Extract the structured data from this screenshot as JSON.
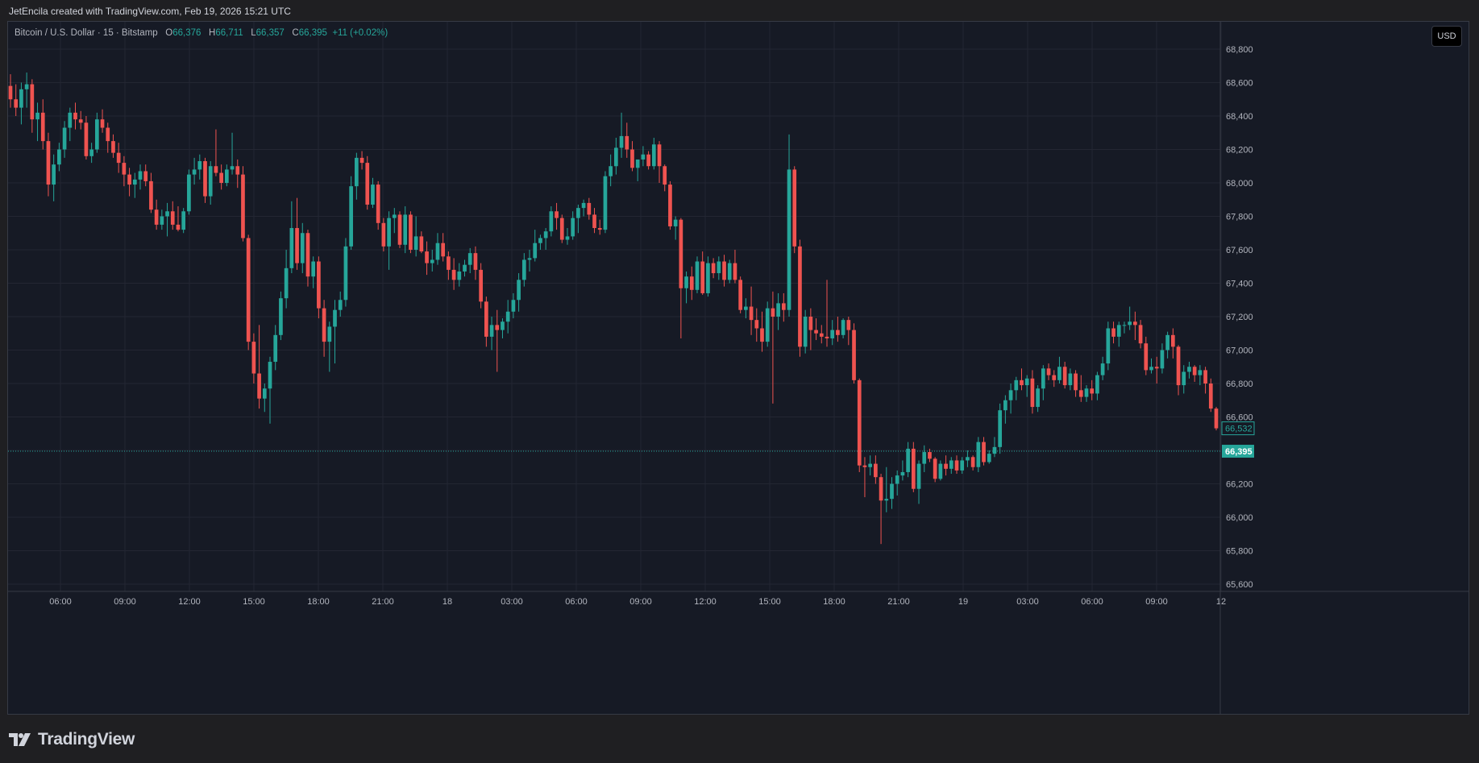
{
  "header": {
    "creator_text": "JetEncila created with TradingView.com, Feb 19, 2026 15:21 UTC"
  },
  "legend": {
    "symbol": "Bitcoin / U.S. Dollar · 15 · Bitstamp",
    "o_label": "O",
    "o_value": "66,376",
    "h_label": "H",
    "h_value": "66,711",
    "l_label": "L",
    "l_value": "66,357",
    "c_label": "C",
    "c_value": "66,395",
    "change": "+11 (+0.02%)"
  },
  "currency_button": "USD",
  "brand": {
    "name": "TradingView",
    "logo_icon": "tradingview-logo-icon"
  },
  "colors": {
    "up": "#26a69a",
    "down": "#ef5350",
    "background": "#161a25",
    "grid": "#232632",
    "axis_text": "#b2b5be"
  },
  "chart_data": {
    "type": "candlestick",
    "title": "Bitcoin / U.S. Dollar · 15 · Bitstamp",
    "timeframe": "15",
    "ylim": [
      65600,
      68800
    ],
    "y_ticks": [
      "68,800",
      "68,600",
      "68,400",
      "68,200",
      "68,000",
      "67,800",
      "67,600",
      "67,400",
      "67,200",
      "67,000",
      "66,800",
      "66,600",
      "66,400",
      "66,200",
      "66,000",
      "65,800",
      "65,600"
    ],
    "x_ticks": [
      "06:00",
      "09:00",
      "12:00",
      "15:00",
      "18:00",
      "21:00",
      "18",
      "03:00",
      "06:00",
      "09:00",
      "12:00",
      "15:00",
      "18:00",
      "21:00",
      "19",
      "03:00",
      "06:00",
      "09:00",
      "12"
    ],
    "price_labels": [
      {
        "value": 66532,
        "text": "66,532",
        "style": "outline"
      },
      {
        "value": 66395,
        "text": "66,395",
        "style": "filled"
      }
    ],
    "last_price_line": 66395,
    "grid": true,
    "candles": [
      [
        68580,
        68650,
        68450,
        68500
      ],
      [
        68500,
        68590,
        68400,
        68450
      ],
      [
        68450,
        68600,
        68350,
        68560
      ],
      [
        68560,
        68660,
        68450,
        68590
      ],
      [
        68590,
        68620,
        68300,
        68380
      ],
      [
        68380,
        68480,
        68250,
        68420
      ],
      [
        68420,
        68500,
        68200,
        68250
      ],
      [
        68250,
        68300,
        67920,
        67990
      ],
      [
        67990,
        68170,
        67890,
        68110
      ],
      [
        68110,
        68240,
        68070,
        68200
      ],
      [
        68200,
        68370,
        68150,
        68330
      ],
      [
        68330,
        68450,
        68250,
        68420
      ],
      [
        68420,
        68480,
        68320,
        68380
      ],
      [
        68380,
        68430,
        68320,
        68360
      ],
      [
        68360,
        68400,
        68140,
        68160
      ],
      [
        68160,
        68240,
        68120,
        68200
      ],
      [
        68200,
        68420,
        68180,
        68380
      ],
      [
        68380,
        68440,
        68300,
        68330
      ],
      [
        68330,
        68360,
        68180,
        68250
      ],
      [
        68250,
        68290,
        68150,
        68180
      ],
      [
        68180,
        68240,
        68060,
        68120
      ],
      [
        68120,
        68160,
        67980,
        68050
      ],
      [
        68050,
        68090,
        67920,
        67990
      ],
      [
        67990,
        68060,
        67910,
        68020
      ],
      [
        68020,
        68110,
        67960,
        68070
      ],
      [
        68070,
        68110,
        67980,
        68010
      ],
      [
        68010,
        68060,
        67820,
        67840
      ],
      [
        67840,
        67900,
        67720,
        67750
      ],
      [
        67750,
        67840,
        67720,
        67800
      ],
      [
        67800,
        67880,
        67680,
        67830
      ],
      [
        67830,
        67890,
        67720,
        67750
      ],
      [
        67750,
        67860,
        67710,
        67720
      ],
      [
        67720,
        67850,
        67700,
        67830
      ],
      [
        67830,
        68080,
        67810,
        68050
      ],
      [
        68050,
        68150,
        67990,
        68080
      ],
      [
        68080,
        68170,
        68020,
        68130
      ],
      [
        68130,
        68150,
        67880,
        67920
      ],
      [
        67920,
        68130,
        67870,
        68100
      ],
      [
        68100,
        68320,
        68040,
        68060
      ],
      [
        68060,
        68110,
        67960,
        68000
      ],
      [
        68000,
        68110,
        67980,
        68080
      ],
      [
        68080,
        68300,
        68050,
        68100
      ],
      [
        68100,
        68140,
        67970,
        68050
      ],
      [
        68050,
        68100,
        67650,
        67670
      ],
      [
        67670,
        67690,
        67000,
        67050
      ],
      [
        67050,
        67100,
        66800,
        66860
      ],
      [
        66860,
        67150,
        66650,
        66710
      ],
      [
        66710,
        66800,
        66630,
        66770
      ],
      [
        66770,
        66960,
        66560,
        66930
      ],
      [
        66930,
        67150,
        66880,
        67090
      ],
      [
        67090,
        67350,
        67060,
        67310
      ],
      [
        67310,
        67600,
        67250,
        67490
      ],
      [
        67490,
        67890,
        67460,
        67730
      ],
      [
        67730,
        67910,
        67480,
        67520
      ],
      [
        67520,
        67760,
        67460,
        67700
      ],
      [
        67700,
        67720,
        67380,
        67440
      ],
      [
        67440,
        67560,
        67370,
        67530
      ],
      [
        67530,
        67560,
        67190,
        67250
      ],
      [
        67250,
        67300,
        66960,
        67050
      ],
      [
        67050,
        67170,
        66870,
        67140
      ],
      [
        67140,
        67300,
        66920,
        67240
      ],
      [
        67240,
        67350,
        67200,
        67300
      ],
      [
        67300,
        67670,
        67260,
        67620
      ],
      [
        67620,
        68040,
        67600,
        67980
      ],
      [
        67980,
        68180,
        67900,
        68150
      ],
      [
        68150,
        68190,
        68080,
        68120
      ],
      [
        68120,
        68160,
        67840,
        67870
      ],
      [
        67870,
        68030,
        67850,
        67990
      ],
      [
        67990,
        68010,
        67720,
        67760
      ],
      [
        67760,
        67790,
        67590,
        67620
      ],
      [
        67620,
        67830,
        67480,
        67790
      ],
      [
        67790,
        67850,
        67700,
        67810
      ],
      [
        67810,
        67830,
        67610,
        67630
      ],
      [
        67630,
        67860,
        67580,
        67810
      ],
      [
        67810,
        67830,
        67580,
        67600
      ],
      [
        67600,
        67800,
        67560,
        67680
      ],
      [
        67680,
        67710,
        67580,
        67590
      ],
      [
        67590,
        67650,
        67450,
        67520
      ],
      [
        67520,
        67600,
        67470,
        67540
      ],
      [
        67540,
        67700,
        67510,
        67640
      ],
      [
        67640,
        67700,
        67530,
        67560
      ],
      [
        67560,
        67590,
        67420,
        67480
      ],
      [
        67480,
        67550,
        67360,
        67420
      ],
      [
        67420,
        67520,
        67380,
        67470
      ],
      [
        67470,
        67540,
        67440,
        67510
      ],
      [
        67510,
        67610,
        67460,
        67580
      ],
      [
        67580,
        67620,
        67420,
        67480
      ],
      [
        67480,
        67520,
        67250,
        67290
      ],
      [
        67290,
        67320,
        67020,
        67080
      ],
      [
        67080,
        67200,
        67000,
        67150
      ],
      [
        67150,
        67240,
        66870,
        67120
      ],
      [
        67120,
        67190,
        67070,
        67170
      ],
      [
        67170,
        67300,
        67100,
        67230
      ],
      [
        67230,
        67340,
        67190,
        67300
      ],
      [
        67300,
        67460,
        67230,
        67420
      ],
      [
        67420,
        67580,
        67380,
        67540
      ],
      [
        67540,
        67600,
        67470,
        67550
      ],
      [
        67550,
        67720,
        67530,
        67640
      ],
      [
        67640,
        67690,
        67600,
        67670
      ],
      [
        67670,
        67730,
        67600,
        67710
      ],
      [
        67710,
        67860,
        67680,
        67830
      ],
      [
        67830,
        67880,
        67720,
        67790
      ],
      [
        67790,
        67810,
        67640,
        67660
      ],
      [
        67660,
        67730,
        67630,
        67680
      ],
      [
        67680,
        67830,
        67660,
        67790
      ],
      [
        67790,
        67870,
        67700,
        67850
      ],
      [
        67850,
        67900,
        67800,
        67880
      ],
      [
        67880,
        67910,
        67780,
        67810
      ],
      [
        67810,
        67850,
        67700,
        67730
      ],
      [
        67730,
        67780,
        67690,
        67720
      ],
      [
        67720,
        68070,
        67700,
        68040
      ],
      [
        68040,
        68170,
        67980,
        68100
      ],
      [
        68100,
        68270,
        68050,
        68210
      ],
      [
        68210,
        68420,
        68150,
        68280
      ],
      [
        68280,
        68360,
        68150,
        68200
      ],
      [
        68200,
        68250,
        68070,
        68090
      ],
      [
        68090,
        68130,
        68010,
        68140
      ],
      [
        68140,
        68220,
        68100,
        68170
      ],
      [
        68170,
        68190,
        68080,
        68100
      ],
      [
        68100,
        68270,
        68080,
        68230
      ],
      [
        68230,
        68250,
        68000,
        68100
      ],
      [
        68100,
        68110,
        67950,
        67990
      ],
      [
        67990,
        68010,
        67720,
        67740
      ],
      [
        67740,
        67800,
        67660,
        67780
      ],
      [
        67780,
        67790,
        67070,
        67370
      ],
      [
        67370,
        67470,
        67280,
        67440
      ],
      [
        67440,
        67500,
        67300,
        67360
      ],
      [
        67360,
        67560,
        67340,
        67530
      ],
      [
        67530,
        67590,
        67330,
        67340
      ],
      [
        67340,
        67560,
        67320,
        67520
      ],
      [
        67520,
        67550,
        67430,
        67460
      ],
      [
        67460,
        67560,
        67420,
        67530
      ],
      [
        67530,
        67570,
        67380,
        67420
      ],
      [
        67420,
        67540,
        67400,
        67520
      ],
      [
        67520,
        67600,
        67400,
        67420
      ],
      [
        67420,
        67440,
        67220,
        67240
      ],
      [
        67240,
        67310,
        67190,
        67260
      ],
      [
        67260,
        67380,
        67090,
        67180
      ],
      [
        67180,
        67250,
        67050,
        67130
      ],
      [
        67130,
        67230,
        66990,
        67050
      ],
      [
        67050,
        67290,
        67020,
        67250
      ],
      [
        67250,
        67350,
        66680,
        67200
      ],
      [
        67200,
        67340,
        67120,
        67280
      ],
      [
        67280,
        67340,
        67170,
        67240
      ],
      [
        67240,
        68290,
        67200,
        68080
      ],
      [
        68080,
        68100,
        67580,
        67620
      ],
      [
        67620,
        67660,
        66960,
        67020
      ],
      [
        67020,
        67240,
        66980,
        67200
      ],
      [
        67200,
        67250,
        67000,
        67120
      ],
      [
        67120,
        67190,
        67060,
        67100
      ],
      [
        67100,
        67150,
        67040,
        67080
      ],
      [
        67080,
        67420,
        67020,
        67070
      ],
      [
        67070,
        67180,
        67030,
        67120
      ],
      [
        67120,
        67200,
        67050,
        67090
      ],
      [
        67090,
        67190,
        67070,
        67180
      ],
      [
        67180,
        67200,
        67030,
        67120
      ],
      [
        67120,
        67160,
        66800,
        66820
      ],
      [
        66820,
        66830,
        66270,
        66310
      ],
      [
        66310,
        66360,
        66120,
        66300
      ],
      [
        66300,
        66370,
        66250,
        66320
      ],
      [
        66320,
        66370,
        66200,
        66240
      ],
      [
        66240,
        66260,
        65840,
        66100
      ],
      [
        66100,
        66300,
        66030,
        66110
      ],
      [
        66110,
        66240,
        66050,
        66200
      ],
      [
        66200,
        66280,
        66130,
        66250
      ],
      [
        66250,
        66340,
        66220,
        66270
      ],
      [
        66270,
        66450,
        66240,
        66410
      ],
      [
        66410,
        66450,
        66150,
        66170
      ],
      [
        66170,
        66340,
        66080,
        66320
      ],
      [
        66320,
        66430,
        66270,
        66390
      ],
      [
        66390,
        66410,
        66330,
        66350
      ],
      [
        66350,
        66360,
        66210,
        66230
      ],
      [
        66230,
        66340,
        66220,
        66320
      ],
      [
        66320,
        66370,
        66250,
        66290
      ],
      [
        66290,
        66360,
        66260,
        66340
      ],
      [
        66340,
        66370,
        66260,
        66280
      ],
      [
        66280,
        66360,
        66260,
        66340
      ],
      [
        66340,
        66400,
        66300,
        66360
      ],
      [
        66360,
        66370,
        66280,
        66300
      ],
      [
        66300,
        66480,
        66270,
        66450
      ],
      [
        66450,
        66480,
        66310,
        66330
      ],
      [
        66330,
        66400,
        66320,
        66380
      ],
      [
        66380,
        66480,
        66360,
        66420
      ],
      [
        66420,
        66680,
        66380,
        66640
      ],
      [
        66640,
        66730,
        66560,
        66700
      ],
      [
        66700,
        66800,
        66620,
        66760
      ],
      [
        66760,
        66840,
        66700,
        66820
      ],
      [
        66820,
        66890,
        66760,
        66790
      ],
      [
        66790,
        66850,
        66720,
        66830
      ],
      [
        66830,
        66880,
        66620,
        66660
      ],
      [
        66660,
        66790,
        66630,
        66770
      ],
      [
        66770,
        66910,
        66700,
        66890
      ],
      [
        66890,
        66920,
        66820,
        66850
      ],
      [
        66850,
        66880,
        66780,
        66820
      ],
      [
        66820,
        66960,
        66800,
        66900
      ],
      [
        66900,
        66930,
        66770,
        66790
      ],
      [
        66790,
        66890,
        66760,
        66860
      ],
      [
        66860,
        66880,
        66720,
        66760
      ],
      [
        66760,
        66850,
        66690,
        66720
      ],
      [
        66720,
        66790,
        66690,
        66770
      ],
      [
        66770,
        66820,
        66700,
        66740
      ],
      [
        66740,
        66870,
        66700,
        66850
      ],
      [
        66850,
        66960,
        66820,
        66920
      ],
      [
        66920,
        67170,
        66880,
        67130
      ],
      [
        67130,
        67170,
        67040,
        67080
      ],
      [
        67080,
        67170,
        67020,
        67150
      ],
      [
        67150,
        67170,
        67100,
        67150
      ],
      [
        67150,
        67260,
        67120,
        67170
      ],
      [
        67170,
        67230,
        67060,
        67150
      ],
      [
        67150,
        67180,
        67010,
        67040
      ],
      [
        67040,
        67080,
        66850,
        66880
      ],
      [
        66880,
        66950,
        66860,
        66900
      ],
      [
        66900,
        66960,
        66800,
        66890
      ],
      [
        66890,
        67040,
        66860,
        67000
      ],
      [
        67000,
        67110,
        66950,
        67090
      ],
      [
        67090,
        67130,
        66950,
        67020
      ],
      [
        67020,
        67030,
        66730,
        66790
      ],
      [
        66790,
        66910,
        66740,
        66870
      ],
      [
        66870,
        66930,
        66830,
        66900
      ],
      [
        66900,
        66910,
        66810,
        66850
      ],
      [
        66850,
        66910,
        66790,
        66880
      ],
      [
        66880,
        66900,
        66740,
        66800
      ],
      [
        66800,
        66830,
        66630,
        66650
      ],
      [
        66650,
        66660,
        66520,
        66532
      ]
    ]
  }
}
